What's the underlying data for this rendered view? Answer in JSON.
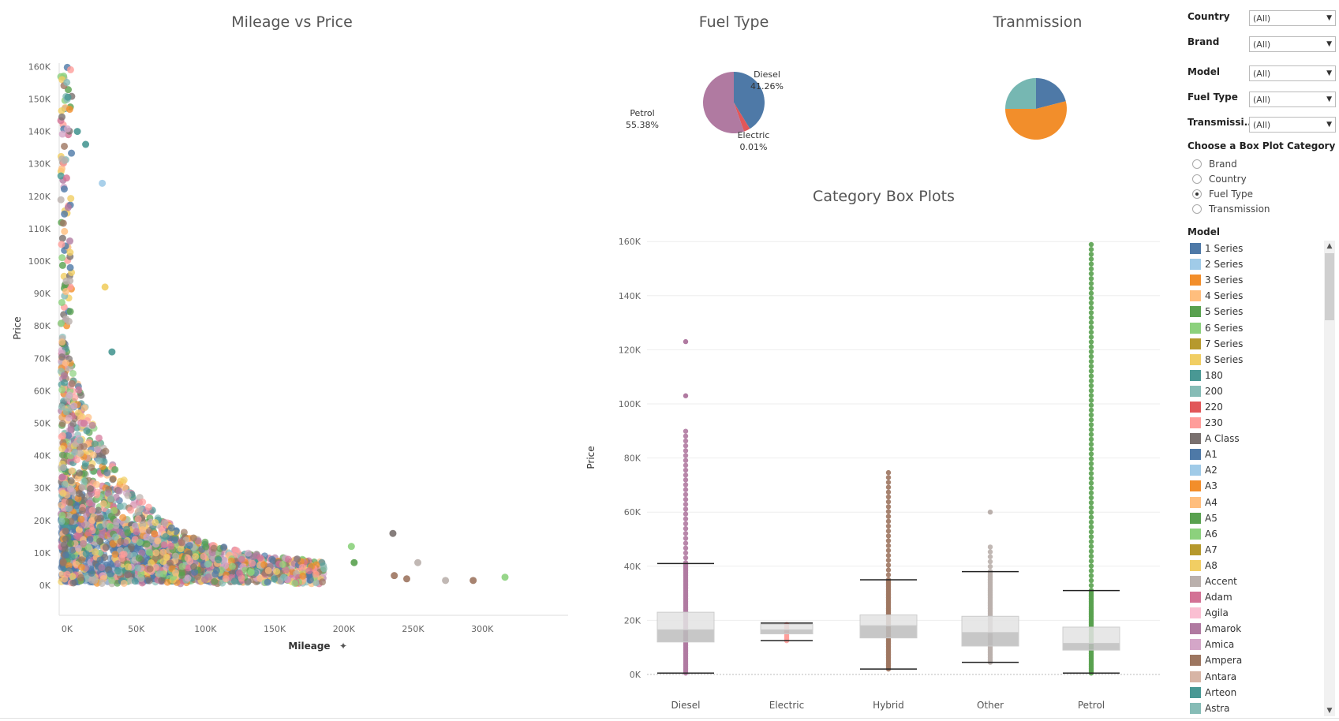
{
  "scatter": {
    "title": "Mileage vs Price",
    "xlabel": "Mileage",
    "ylabel": "Price",
    "x_ticks": [
      "0K",
      "50K",
      "100K",
      "150K",
      "200K",
      "250K",
      "300K"
    ],
    "y_ticks": [
      "0K",
      "10K",
      "20K",
      "30K",
      "40K",
      "50K",
      "60K",
      "70K",
      "80K",
      "90K",
      "100K",
      "110K",
      "120K",
      "130K",
      "140K",
      "150K",
      "160K"
    ]
  },
  "fuel_pie": {
    "title": "Fuel Type",
    "labels": [
      {
        "name": "Diesel",
        "pct": "41.26%"
      },
      {
        "name": "Electric",
        "pct": "0.01%"
      },
      {
        "name": "Petrol",
        "pct": "55.38%"
      }
    ]
  },
  "trans_pie": {
    "title": "Tranmission"
  },
  "boxplots": {
    "title": "Category Box Plots",
    "ylabel": "Price",
    "y_ticks": [
      "0K",
      "20K",
      "40K",
      "60K",
      "80K",
      "100K",
      "120K",
      "140K",
      "160K"
    ],
    "categories": [
      "Diesel",
      "Electric",
      "Hybrid",
      "Other",
      "Petrol"
    ]
  },
  "filters": {
    "country": {
      "label": "Country",
      "value": "(All)"
    },
    "brand": {
      "label": "Brand",
      "value": "(All)"
    },
    "model": {
      "label": "Model",
      "value": "(All)"
    },
    "fuel": {
      "label": "Fuel Type",
      "value": "(All)"
    },
    "transmission": {
      "label": "Transmissi..",
      "value": "(All)"
    }
  },
  "box_category": {
    "title": "Choose a Box Plot Category",
    "options": [
      "Brand",
      "Country",
      "Fuel Type",
      "Transmission"
    ],
    "selected": "Fuel Type"
  },
  "model_legend": {
    "title": "Model",
    "items": [
      {
        "label": "1 Series",
        "color": "#4e79a7"
      },
      {
        "label": "2 Series",
        "color": "#a0cbe8"
      },
      {
        "label": "3 Series",
        "color": "#f28e2b"
      },
      {
        "label": "4 Series",
        "color": "#ffbe7d"
      },
      {
        "label": "5 Series",
        "color": "#59a14f"
      },
      {
        "label": "6 Series",
        "color": "#8cd17d"
      },
      {
        "label": "7 Series",
        "color": "#b6992d"
      },
      {
        "label": "8 Series",
        "color": "#f1ce63"
      },
      {
        "label": "180",
        "color": "#499894"
      },
      {
        "label": "200",
        "color": "#86bcb6"
      },
      {
        "label": "220",
        "color": "#e15759"
      },
      {
        "label": "230",
        "color": "#ff9d9a"
      },
      {
        "label": "A Class",
        "color": "#79706e"
      },
      {
        "label": "A1",
        "color": "#4e79a7"
      },
      {
        "label": "A2",
        "color": "#a0cbe8"
      },
      {
        "label": "A3",
        "color": "#f28e2b"
      },
      {
        "label": "A4",
        "color": "#ffbe7d"
      },
      {
        "label": "A5",
        "color": "#59a14f"
      },
      {
        "label": "A6",
        "color": "#8cd17d"
      },
      {
        "label": "A7",
        "color": "#b6992d"
      },
      {
        "label": "A8",
        "color": "#f1ce63"
      },
      {
        "label": "Accent",
        "color": "#bab0ac"
      },
      {
        "label": "Adam",
        "color": "#d37295"
      },
      {
        "label": "Agila",
        "color": "#fabfd2"
      },
      {
        "label": "Amarok",
        "color": "#b07aa1"
      },
      {
        "label": "Amica",
        "color": "#d4a6c8"
      },
      {
        "label": "Ampera",
        "color": "#9d7660"
      },
      {
        "label": "Antara",
        "color": "#d7b5a6"
      },
      {
        "label": "Arteon",
        "color": "#499894"
      },
      {
        "label": "Astra",
        "color": "#86bcb6"
      }
    ]
  }
}
